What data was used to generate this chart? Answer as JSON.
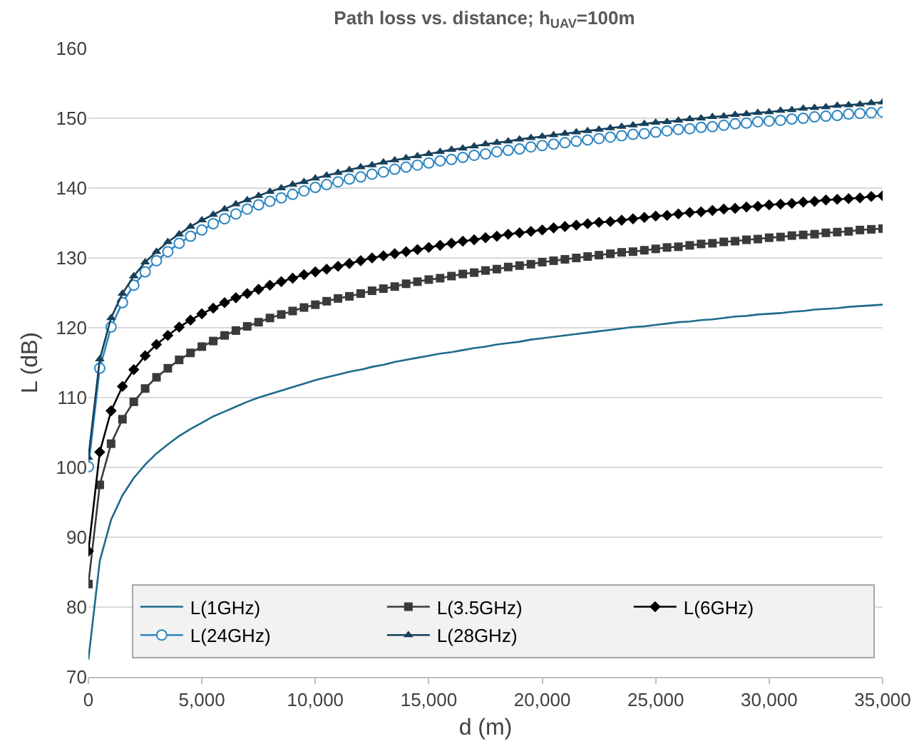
{
  "chart_data": {
    "type": "line",
    "title": "Path loss vs. distance; h$_{UAV}$=100m",
    "xlabel": "d (m)",
    "ylabel": "L (dB)",
    "x": [
      0,
      500,
      1000,
      1500,
      2000,
      2500,
      3000,
      3500,
      4000,
      4500,
      5000,
      5500,
      6000,
      6500,
      7000,
      7500,
      8000,
      8500,
      9000,
      9500,
      10000,
      10500,
      11000,
      11500,
      12000,
      12500,
      13000,
      13500,
      14000,
      14500,
      15000,
      15500,
      16000,
      16500,
      17000,
      17500,
      18000,
      18500,
      19000,
      19500,
      20000,
      20500,
      21000,
      21500,
      22000,
      22500,
      23000,
      23500,
      24000,
      24500,
      25000,
      25500,
      26000,
      26500,
      27000,
      27500,
      28000,
      28500,
      29000,
      29500,
      30000,
      30500,
      31000,
      31500,
      32000,
      32500,
      33000,
      33500,
      34000,
      34500,
      35000
    ],
    "series": [
      {
        "name": "L(1GHz)",
        "color": "#1f6a8c",
        "marker": "none",
        "values": [
          72.5,
          86.6,
          92.5,
          96.0,
          98.5,
          100.4,
          102.0,
          103.3,
          104.5,
          105.5,
          106.4,
          107.3,
          108.0,
          108.7,
          109.4,
          110.0,
          110.5,
          111.0,
          111.5,
          112.0,
          112.5,
          112.9,
          113.3,
          113.7,
          114.0,
          114.4,
          114.7,
          115.1,
          115.4,
          115.7,
          116.0,
          116.3,
          116.5,
          116.8,
          117.1,
          117.3,
          117.6,
          117.8,
          118.0,
          118.3,
          118.5,
          118.7,
          118.9,
          119.1,
          119.3,
          119.5,
          119.7,
          119.9,
          120.1,
          120.2,
          120.4,
          120.6,
          120.8,
          120.9,
          121.1,
          121.2,
          121.4,
          121.6,
          121.7,
          121.9,
          122.0,
          122.1,
          122.3,
          122.4,
          122.6,
          122.7,
          122.8,
          123.0,
          123.1,
          123.2,
          123.3
        ]
      },
      {
        "name": "L(3.5GHz)",
        "color": "#3a3a3a",
        "marker": "square",
        "values": [
          83.3,
          97.5,
          103.4,
          106.9,
          109.4,
          111.3,
          112.9,
          114.2,
          115.4,
          116.4,
          117.3,
          118.1,
          118.9,
          119.6,
          120.2,
          120.8,
          121.4,
          121.9,
          122.4,
          122.9,
          123.3,
          123.8,
          124.2,
          124.5,
          124.9,
          125.3,
          125.6,
          125.9,
          126.3,
          126.6,
          126.9,
          127.1,
          127.4,
          127.7,
          127.9,
          128.2,
          128.4,
          128.7,
          128.9,
          129.1,
          129.4,
          129.6,
          129.8,
          130.0,
          130.2,
          130.4,
          130.6,
          130.8,
          130.9,
          131.1,
          131.3,
          131.5,
          131.6,
          131.8,
          132.0,
          132.1,
          132.3,
          132.4,
          132.6,
          132.7,
          132.9,
          133.0,
          133.2,
          133.3,
          133.4,
          133.6,
          133.7,
          133.8,
          134.0,
          134.1,
          134.2
        ]
      },
      {
        "name": "L(6GHz)",
        "color": "#000000",
        "marker": "diamond",
        "values": [
          88.0,
          102.2,
          108.1,
          111.6,
          114.0,
          116.0,
          117.6,
          118.9,
          120.1,
          121.1,
          122.0,
          122.8,
          123.6,
          124.3,
          124.9,
          125.5,
          126.1,
          126.6,
          127.1,
          127.6,
          128.0,
          128.4,
          128.8,
          129.2,
          129.6,
          130.0,
          130.3,
          130.6,
          130.9,
          131.2,
          131.5,
          131.8,
          132.1,
          132.4,
          132.6,
          132.9,
          133.1,
          133.4,
          133.6,
          133.8,
          134.0,
          134.3,
          134.5,
          134.7,
          134.9,
          135.1,
          135.2,
          135.4,
          135.6,
          135.8,
          136.0,
          136.1,
          136.3,
          136.5,
          136.6,
          136.8,
          137.0,
          137.1,
          137.3,
          137.4,
          137.6,
          137.7,
          137.8,
          138.0,
          138.1,
          138.3,
          138.4,
          138.5,
          138.6,
          138.8,
          138.9
        ]
      },
      {
        "name": "L(24GHz)",
        "color": "#2e86c1",
        "marker": "circle",
        "values": [
          100.1,
          114.2,
          120.1,
          123.6,
          126.1,
          128.0,
          129.6,
          130.9,
          132.1,
          133.1,
          134.0,
          134.9,
          135.6,
          136.3,
          137.0,
          137.6,
          138.1,
          138.6,
          139.1,
          139.6,
          140.1,
          140.5,
          140.9,
          141.3,
          141.6,
          142.0,
          142.3,
          142.7,
          143.0,
          143.3,
          143.6,
          143.9,
          144.1,
          144.4,
          144.7,
          144.9,
          145.2,
          145.4,
          145.6,
          145.9,
          146.1,
          146.3,
          146.5,
          146.7,
          146.9,
          147.1,
          147.3,
          147.5,
          147.7,
          147.8,
          148.0,
          148.2,
          148.4,
          148.5,
          148.7,
          148.8,
          149.0,
          149.2,
          149.3,
          149.5,
          149.6,
          149.7,
          149.9,
          150.0,
          150.2,
          150.3,
          150.4,
          150.6,
          150.7,
          150.8,
          150.9
        ]
      },
      {
        "name": "L(28GHz)",
        "color": "#17405a",
        "marker": "triangle",
        "values": [
          101.4,
          115.5,
          121.4,
          124.9,
          127.4,
          129.4,
          130.9,
          132.3,
          133.4,
          134.5,
          135.4,
          136.2,
          137.0,
          137.7,
          138.3,
          138.9,
          139.5,
          140.0,
          140.5,
          140.9,
          141.4,
          141.8,
          142.2,
          142.6,
          143.0,
          143.3,
          143.7,
          144.0,
          144.3,
          144.6,
          144.9,
          145.2,
          145.5,
          145.7,
          146.0,
          146.3,
          146.5,
          146.7,
          147.0,
          147.2,
          147.4,
          147.6,
          147.8,
          148.0,
          148.2,
          148.4,
          148.6,
          148.8,
          149.0,
          149.2,
          149.4,
          149.5,
          149.7,
          149.9,
          150.0,
          150.2,
          150.3,
          150.5,
          150.6,
          150.8,
          150.9,
          151.1,
          151.2,
          151.4,
          151.5,
          151.6,
          151.8,
          151.9,
          152.0,
          152.2,
          152.3
        ]
      }
    ],
    "xlim": [
      0,
      35000
    ],
    "xticks": [
      0,
      {
        "value": 5000,
        "label": "5,000"
      },
      {
        "value": 10000,
        "label": "10,000"
      },
      {
        "value": 15000,
        "label": "15,000"
      },
      {
        "value": 20000,
        "label": "20,000"
      },
      {
        "value": 25000,
        "label": "25,000"
      },
      {
        "value": 30000,
        "label": "30,000"
      },
      {
        "value": 35000,
        "label": "35,000"
      }
    ],
    "ylim": [
      70,
      160
    ],
    "yticks": [
      70,
      80,
      90,
      100,
      110,
      120,
      130,
      140,
      150,
      160
    ],
    "grid": "y",
    "legend": "bottom right",
    "line_style": "solid"
  }
}
